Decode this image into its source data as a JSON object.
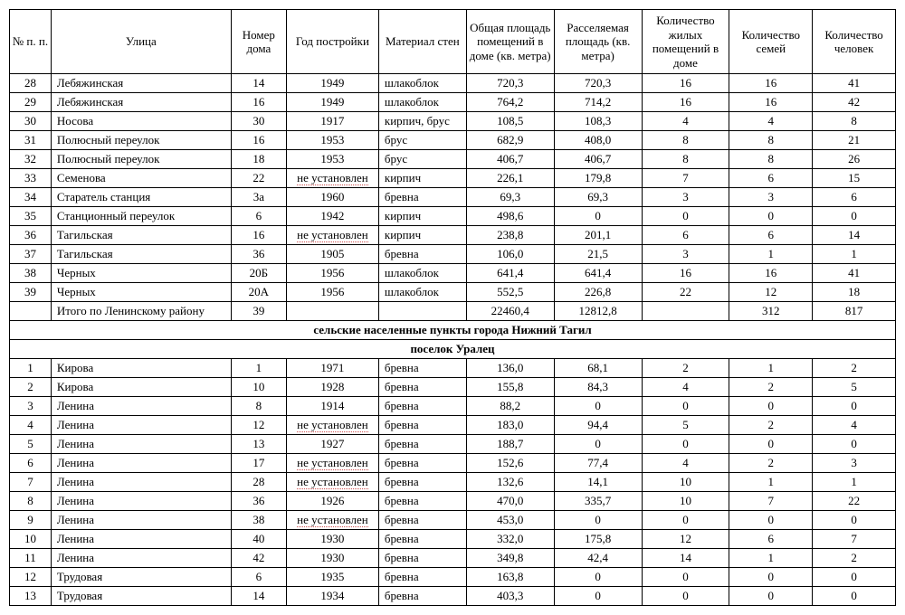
{
  "headers": [
    "№ п. п.",
    "Улица",
    "Номер дома",
    "Год постройки",
    "Материал стен",
    "Общая площадь помещений в доме (кв. метра)",
    "Расселяемая площадь (кв. метра)",
    "Количество жилых помещений в доме",
    "Количество семей",
    "Количество человек"
  ],
  "section1_rows": [
    {
      "n": "28",
      "street": "Лебяжинская",
      "house": "14",
      "year": "1949",
      "mat": "шлакоблок",
      "area": "720,3",
      "rarea": "720,3",
      "rooms": "16",
      "fam": "16",
      "ppl": "41"
    },
    {
      "n": "29",
      "street": "Лебяжинская",
      "house": "16",
      "year": "1949",
      "mat": "шлакоблок",
      "area": "764,2",
      "rarea": "714,2",
      "rooms": "16",
      "fam": "16",
      "ppl": "42"
    },
    {
      "n": "30",
      "street": "Носова",
      "house": "30",
      "year": "1917",
      "mat": "кирпич, брус",
      "area": "108,5",
      "rarea": "108,3",
      "rooms": "4",
      "fam": "4",
      "ppl": "8"
    },
    {
      "n": "31",
      "street": "Полюсный переулок",
      "house": "16",
      "year": "1953",
      "mat": "брус",
      "area": "682,9",
      "rarea": "408,0",
      "rooms": "8",
      "fam": "8",
      "ppl": "21"
    },
    {
      "n": "32",
      "street": "Полюсный переулок",
      "house": "18",
      "year": "1953",
      "mat": "брус",
      "area": "406,7",
      "rarea": "406,7",
      "rooms": "8",
      "fam": "8",
      "ppl": "26"
    },
    {
      "n": "33",
      "street": "Семенова",
      "house": "22",
      "year": "не установлен",
      "year_u": true,
      "mat": "кирпич",
      "area": "226,1",
      "rarea": "179,8",
      "rooms": "7",
      "fam": "6",
      "ppl": "15"
    },
    {
      "n": "34",
      "street": "Старатель станция",
      "house": "3а",
      "year": "1960",
      "mat": "бревна",
      "area": "69,3",
      "rarea": "69,3",
      "rooms": "3",
      "fam": "3",
      "ppl": "6"
    },
    {
      "n": "35",
      "street": "Станционный переулок",
      "house": "6",
      "year": "1942",
      "mat": "кирпич",
      "area": "498,6",
      "rarea": "0",
      "rooms": "0",
      "fam": "0",
      "ppl": "0"
    },
    {
      "n": "36",
      "street": "Тагильская",
      "house": "16",
      "year": "не установлен",
      "year_u": true,
      "mat": "кирпич",
      "area": "238,8",
      "rarea": "201,1",
      "rooms": "6",
      "fam": "6",
      "ppl": "14"
    },
    {
      "n": "37",
      "street": "Тагильская",
      "house": "36",
      "year": "1905",
      "mat": "бревна",
      "area": "106,0",
      "rarea": "21,5",
      "rooms": "3",
      "fam": "1",
      "ppl": "1"
    },
    {
      "n": "38",
      "street": "Черных",
      "house": "20Б",
      "year": "1956",
      "mat": "шлакоблок",
      "area": "641,4",
      "rarea": "641,4",
      "rooms": "16",
      "fam": "16",
      "ppl": "41"
    },
    {
      "n": "39",
      "street": "Черных",
      "house": "20А",
      "year": "1956",
      "mat": "шлакоблок",
      "area": "552,5",
      "rarea": "226,8",
      "rooms": "22",
      "fam": "12",
      "ppl": "18"
    }
  ],
  "total_row": {
    "n": "",
    "street": "Итого по Ленинскому району",
    "house": "39",
    "year": "",
    "mat": "",
    "area": "22460,4",
    "rarea": "12812,8",
    "rooms": "",
    "fam": "312",
    "ppl": "817"
  },
  "section_header1": "сельские населенные пункты города Нижний Тагил",
  "section_header2": "поселок Уралец",
  "section2_rows": [
    {
      "n": "1",
      "street": "Кирова",
      "house": "1",
      "year": "1971",
      "mat": "бревна",
      "area": "136,0",
      "rarea": "68,1",
      "rooms": "2",
      "fam": "1",
      "ppl": "2"
    },
    {
      "n": "2",
      "street": "Кирова",
      "house": "10",
      "year": "1928",
      "mat": "бревна",
      "area": "155,8",
      "rarea": "84,3",
      "rooms": "4",
      "fam": "2",
      "ppl": "5"
    },
    {
      "n": "3",
      "street": "Ленина",
      "house": "8",
      "year": "1914",
      "mat": "бревна",
      "area": "88,2",
      "rarea": "0",
      "rooms": "0",
      "fam": "0",
      "ppl": "0"
    },
    {
      "n": "4",
      "street": "Ленина",
      "house": "12",
      "year": "не установлен",
      "year_u": true,
      "mat": "бревна",
      "area": "183,0",
      "rarea": "94,4",
      "rooms": "5",
      "fam": "2",
      "ppl": "4"
    },
    {
      "n": "5",
      "street": "Ленина",
      "house": "13",
      "year": "1927",
      "mat": "бревна",
      "area": "188,7",
      "rarea": "0",
      "rooms": "0",
      "fam": "0",
      "ppl": "0"
    },
    {
      "n": "6",
      "street": "Ленина",
      "house": "17",
      "year": "не установлен",
      "year_u": true,
      "mat": "бревна",
      "area": "152,6",
      "rarea": "77,4",
      "rooms": "4",
      "fam": "2",
      "ppl": "3"
    },
    {
      "n": "7",
      "street": "Ленина",
      "house": "28",
      "year": "не установлен",
      "year_u": true,
      "mat": "бревна",
      "area": "132,6",
      "rarea": "14,1",
      "rooms": "10",
      "fam": "1",
      "ppl": "1"
    },
    {
      "n": "8",
      "street": "Ленина",
      "house": "36",
      "year": "1926",
      "mat": "бревна",
      "area": "470,0",
      "rarea": "335,7",
      "rooms": "10",
      "fam": "7",
      "ppl": "22"
    },
    {
      "n": "9",
      "street": "Ленина",
      "house": "38",
      "year": "не установлен",
      "year_u": true,
      "mat": "бревна",
      "area": "453,0",
      "rarea": "0",
      "rooms": "0",
      "fam": "0",
      "ppl": "0"
    },
    {
      "n": "10",
      "street": "Ленина",
      "house": "40",
      "year": "1930",
      "mat": "бревна",
      "area": "332,0",
      "rarea": "175,8",
      "rooms": "12",
      "fam": "6",
      "ppl": "7"
    },
    {
      "n": "11",
      "street": "Ленина",
      "house": "42",
      "year": "1930",
      "mat": "бревна",
      "area": "349,8",
      "rarea": "42,4",
      "rooms": "14",
      "fam": "1",
      "ppl": "2"
    },
    {
      "n": "12",
      "street": "Трудовая",
      "house": "6",
      "year": "1935",
      "mat": "бревна",
      "area": "163,8",
      "rarea": "0",
      "rooms": "0",
      "fam": "0",
      "ppl": "0"
    },
    {
      "n": "13",
      "street": "Трудовая",
      "house": "14",
      "year": "1934",
      "mat": "бревна",
      "area": "403,3",
      "rarea": "0",
      "rooms": "0",
      "fam": "0",
      "ppl": "0"
    }
  ]
}
